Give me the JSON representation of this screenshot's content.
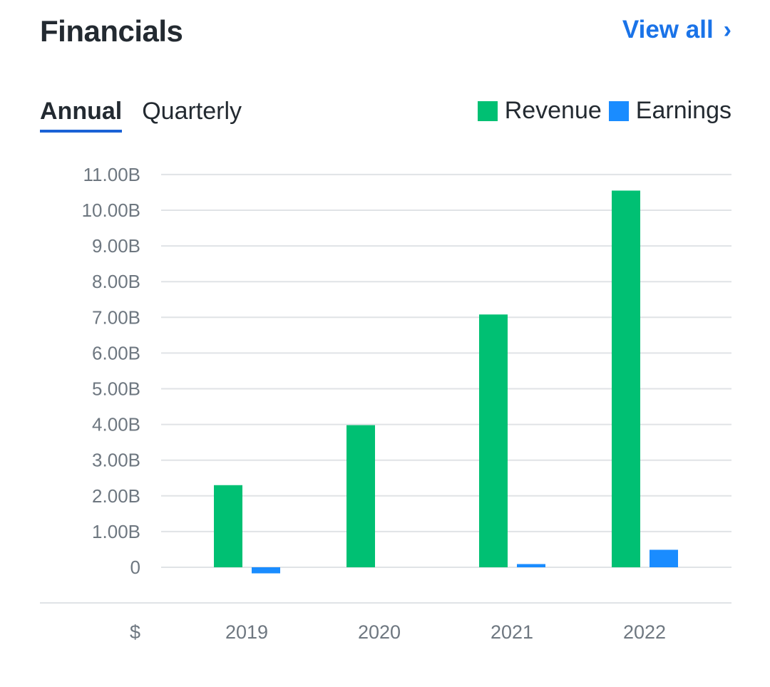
{
  "header": {
    "title": "Financials",
    "view_all_label": "View all",
    "view_all_icon": "chevron-right-icon"
  },
  "tabs": [
    {
      "label": "Annual",
      "active": true
    },
    {
      "label": "Quarterly",
      "active": false
    }
  ],
  "colors": {
    "revenue": "#00c073",
    "earnings": "#1a8cff",
    "accent": "#1a73e8",
    "grid": "#e0e3e6"
  },
  "chart_data": {
    "type": "bar",
    "title": "",
    "currency_label": "$",
    "categories": [
      "2019",
      "2020",
      "2021",
      "2022"
    ],
    "series": [
      {
        "name": "Revenue",
        "values": [
          2.3,
          3.98,
          7.08,
          10.55
        ]
      },
      {
        "name": "Earnings",
        "values": [
          -0.17,
          0.0,
          0.09,
          0.49
        ]
      }
    ],
    "ylim": [
      0,
      11
    ],
    "yticks": [
      0,
      1,
      2,
      3,
      4,
      5,
      6,
      7,
      8,
      9,
      10,
      11
    ],
    "ytick_labels": [
      "0",
      "1.00B",
      "2.00B",
      "3.00B",
      "4.00B",
      "5.00B",
      "6.00B",
      "7.00B",
      "8.00B",
      "9.00B",
      "10.00B",
      "11.00B"
    ],
    "xlabel": "",
    "ylabel": "",
    "legend": "top-right",
    "grid": true
  }
}
